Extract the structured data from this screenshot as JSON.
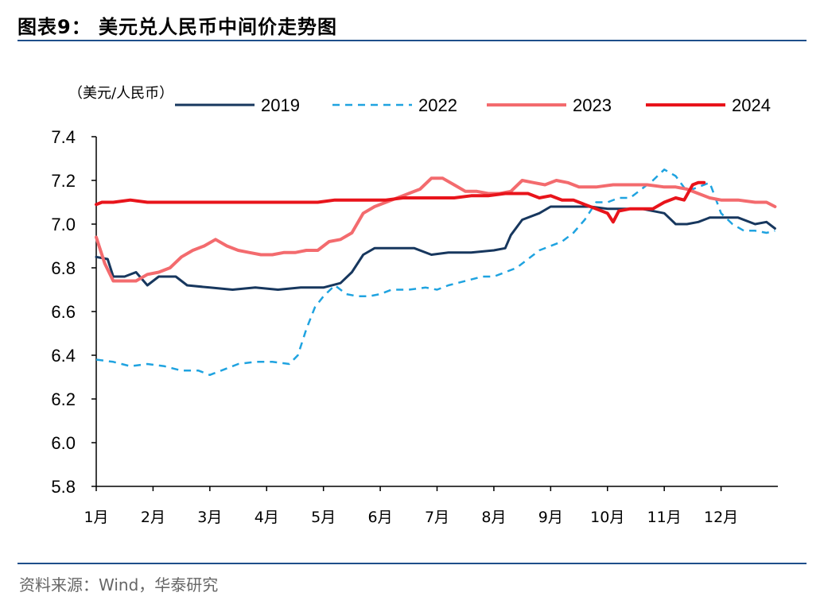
{
  "header": {
    "title": "图表9：  美元兑人民币中间价走势图"
  },
  "footer": {
    "source": "资料来源：Wind，华泰研究"
  },
  "chart_data": {
    "type": "line",
    "unit_label": "（美元/人民币）",
    "ylim": [
      5.8,
      7.4
    ],
    "yticks": [
      "7.4",
      "7.2",
      "7.0",
      "6.8",
      "6.6",
      "6.4",
      "6.2",
      "6.0",
      "5.8"
    ],
    "ytick_values": [
      7.4,
      7.2,
      7.0,
      6.8,
      6.6,
      6.4,
      6.2,
      6.0,
      5.8
    ],
    "categories": [
      "1月",
      "2月",
      "3月",
      "4月",
      "5月",
      "6月",
      "7月",
      "8月",
      "9月",
      "10月",
      "11月",
      "12月"
    ],
    "grid": false,
    "legend_position": "top",
    "series": [
      {
        "name": "2019",
        "color": "#17375e",
        "dash": "solid",
        "width": 3,
        "points": [
          [
            0,
            6.85
          ],
          [
            0.2,
            6.84
          ],
          [
            0.3,
            6.76
          ],
          [
            0.5,
            6.76
          ],
          [
            0.7,
            6.78
          ],
          [
            0.9,
            6.72
          ],
          [
            1.1,
            6.76
          ],
          [
            1.4,
            6.76
          ],
          [
            1.6,
            6.72
          ],
          [
            2.0,
            6.71
          ],
          [
            2.4,
            6.7
          ],
          [
            2.8,
            6.71
          ],
          [
            3.2,
            6.7
          ],
          [
            3.6,
            6.71
          ],
          [
            4.0,
            6.71
          ],
          [
            4.3,
            6.73
          ],
          [
            4.5,
            6.78
          ],
          [
            4.7,
            6.86
          ],
          [
            4.9,
            6.89
          ],
          [
            5.2,
            6.89
          ],
          [
            5.6,
            6.89
          ],
          [
            5.9,
            6.86
          ],
          [
            6.2,
            6.87
          ],
          [
            6.6,
            6.87
          ],
          [
            7.0,
            6.88
          ],
          [
            7.2,
            6.89
          ],
          [
            7.3,
            6.95
          ],
          [
            7.5,
            7.02
          ],
          [
            7.8,
            7.05
          ],
          [
            8.0,
            7.08
          ],
          [
            8.3,
            7.08
          ],
          [
            8.7,
            7.08
          ],
          [
            9.0,
            7.07
          ],
          [
            9.3,
            7.07
          ],
          [
            9.6,
            7.07
          ],
          [
            10.0,
            7.05
          ],
          [
            10.2,
            7.0
          ],
          [
            10.4,
            7.0
          ],
          [
            10.6,
            7.01
          ],
          [
            10.8,
            7.03
          ],
          [
            11.0,
            7.03
          ],
          [
            11.3,
            7.03
          ],
          [
            11.6,
            7.0
          ],
          [
            11.8,
            7.01
          ],
          [
            11.95,
            6.98
          ]
        ]
      },
      {
        "name": "2022",
        "color": "#1fa3e0",
        "dash": "dashed",
        "width": 2.5,
        "points": [
          [
            0,
            6.38
          ],
          [
            0.3,
            6.37
          ],
          [
            0.6,
            6.35
          ],
          [
            0.9,
            6.36
          ],
          [
            1.2,
            6.35
          ],
          [
            1.5,
            6.33
          ],
          [
            1.8,
            6.33
          ],
          [
            2.0,
            6.31
          ],
          [
            2.2,
            6.33
          ],
          [
            2.5,
            6.36
          ],
          [
            2.8,
            6.37
          ],
          [
            3.1,
            6.37
          ],
          [
            3.4,
            6.36
          ],
          [
            3.55,
            6.4
          ],
          [
            3.7,
            6.52
          ],
          [
            3.85,
            6.62
          ],
          [
            4.0,
            6.67
          ],
          [
            4.2,
            6.72
          ],
          [
            4.4,
            6.68
          ],
          [
            4.6,
            6.67
          ],
          [
            4.8,
            6.67
          ],
          [
            5.0,
            6.68
          ],
          [
            5.2,
            6.7
          ],
          [
            5.5,
            6.7
          ],
          [
            5.8,
            6.71
          ],
          [
            6.0,
            6.7
          ],
          [
            6.2,
            6.72
          ],
          [
            6.5,
            6.74
          ],
          [
            6.8,
            6.76
          ],
          [
            7.0,
            6.76
          ],
          [
            7.2,
            6.78
          ],
          [
            7.4,
            6.8
          ],
          [
            7.6,
            6.84
          ],
          [
            7.8,
            6.88
          ],
          [
            8.0,
            6.9
          ],
          [
            8.2,
            6.92
          ],
          [
            8.4,
            6.96
          ],
          [
            8.6,
            7.02
          ],
          [
            8.8,
            7.1
          ],
          [
            9.0,
            7.1
          ],
          [
            9.2,
            7.12
          ],
          [
            9.4,
            7.12
          ],
          [
            9.6,
            7.16
          ],
          [
            9.8,
            7.2
          ],
          [
            10.0,
            7.25
          ],
          [
            10.2,
            7.22
          ],
          [
            10.4,
            7.15
          ],
          [
            10.6,
            7.17
          ],
          [
            10.8,
            7.19
          ],
          [
            11.0,
            7.05
          ],
          [
            11.2,
            7.0
          ],
          [
            11.4,
            6.97
          ],
          [
            11.6,
            6.97
          ],
          [
            11.8,
            6.96
          ],
          [
            11.95,
            6.97
          ]
        ]
      },
      {
        "name": "2023",
        "color": "#f36b6e",
        "dash": "solid",
        "width": 4,
        "points": [
          [
            0,
            6.94
          ],
          [
            0.15,
            6.82
          ],
          [
            0.3,
            6.74
          ],
          [
            0.5,
            6.74
          ],
          [
            0.7,
            6.74
          ],
          [
            0.9,
            6.77
          ],
          [
            1.1,
            6.78
          ],
          [
            1.3,
            6.8
          ],
          [
            1.5,
            6.85
          ],
          [
            1.7,
            6.88
          ],
          [
            1.9,
            6.9
          ],
          [
            2.1,
            6.93
          ],
          [
            2.3,
            6.9
          ],
          [
            2.5,
            6.88
          ],
          [
            2.7,
            6.87
          ],
          [
            2.9,
            6.86
          ],
          [
            3.1,
            6.86
          ],
          [
            3.3,
            6.87
          ],
          [
            3.5,
            6.87
          ],
          [
            3.7,
            6.88
          ],
          [
            3.9,
            6.88
          ],
          [
            4.1,
            6.92
          ],
          [
            4.3,
            6.93
          ],
          [
            4.5,
            6.96
          ],
          [
            4.7,
            7.05
          ],
          [
            4.9,
            7.08
          ],
          [
            5.1,
            7.1
          ],
          [
            5.3,
            7.12
          ],
          [
            5.5,
            7.14
          ],
          [
            5.7,
            7.16
          ],
          [
            5.9,
            7.21
          ],
          [
            6.1,
            7.21
          ],
          [
            6.3,
            7.18
          ],
          [
            6.5,
            7.15
          ],
          [
            6.7,
            7.15
          ],
          [
            6.9,
            7.14
          ],
          [
            7.1,
            7.14
          ],
          [
            7.3,
            7.15
          ],
          [
            7.5,
            7.2
          ],
          [
            7.7,
            7.19
          ],
          [
            7.9,
            7.18
          ],
          [
            8.1,
            7.2
          ],
          [
            8.3,
            7.19
          ],
          [
            8.5,
            7.17
          ],
          [
            8.8,
            7.17
          ],
          [
            9.1,
            7.18
          ],
          [
            9.4,
            7.18
          ],
          [
            9.7,
            7.18
          ],
          [
            10.0,
            7.17
          ],
          [
            10.2,
            7.17
          ],
          [
            10.4,
            7.16
          ],
          [
            10.6,
            7.14
          ],
          [
            10.8,
            7.12
          ],
          [
            11.0,
            7.11
          ],
          [
            11.3,
            7.11
          ],
          [
            11.6,
            7.1
          ],
          [
            11.8,
            7.1
          ],
          [
            11.95,
            7.08
          ]
        ]
      },
      {
        "name": "2024",
        "color": "#e8141b",
        "dash": "solid",
        "width": 4,
        "points": [
          [
            0,
            7.09
          ],
          [
            0.1,
            7.1
          ],
          [
            0.3,
            7.1
          ],
          [
            0.6,
            7.11
          ],
          [
            0.9,
            7.1
          ],
          [
            1.2,
            7.1
          ],
          [
            1.5,
            7.1
          ],
          [
            1.8,
            7.1
          ],
          [
            2.1,
            7.1
          ],
          [
            2.4,
            7.1
          ],
          [
            2.7,
            7.1
          ],
          [
            3.0,
            7.1
          ],
          [
            3.3,
            7.1
          ],
          [
            3.6,
            7.1
          ],
          [
            3.9,
            7.1
          ],
          [
            4.2,
            7.11
          ],
          [
            4.5,
            7.11
          ],
          [
            4.8,
            7.11
          ],
          [
            5.1,
            7.11
          ],
          [
            5.4,
            7.12
          ],
          [
            5.7,
            7.12
          ],
          [
            6.0,
            7.12
          ],
          [
            6.3,
            7.12
          ],
          [
            6.6,
            7.13
          ],
          [
            6.9,
            7.13
          ],
          [
            7.2,
            7.14
          ],
          [
            7.4,
            7.14
          ],
          [
            7.6,
            7.14
          ],
          [
            7.8,
            7.12
          ],
          [
            8.0,
            7.13
          ],
          [
            8.2,
            7.11
          ],
          [
            8.4,
            7.11
          ],
          [
            8.6,
            7.09
          ],
          [
            8.8,
            7.07
          ],
          [
            9.0,
            7.05
          ],
          [
            9.1,
            7.01
          ],
          [
            9.2,
            7.06
          ],
          [
            9.4,
            7.07
          ],
          [
            9.6,
            7.07
          ],
          [
            9.8,
            7.07
          ],
          [
            10.0,
            7.1
          ],
          [
            10.2,
            7.12
          ],
          [
            10.35,
            7.11
          ],
          [
            10.5,
            7.18
          ],
          [
            10.6,
            7.19
          ],
          [
            10.7,
            7.19
          ]
        ]
      }
    ]
  }
}
